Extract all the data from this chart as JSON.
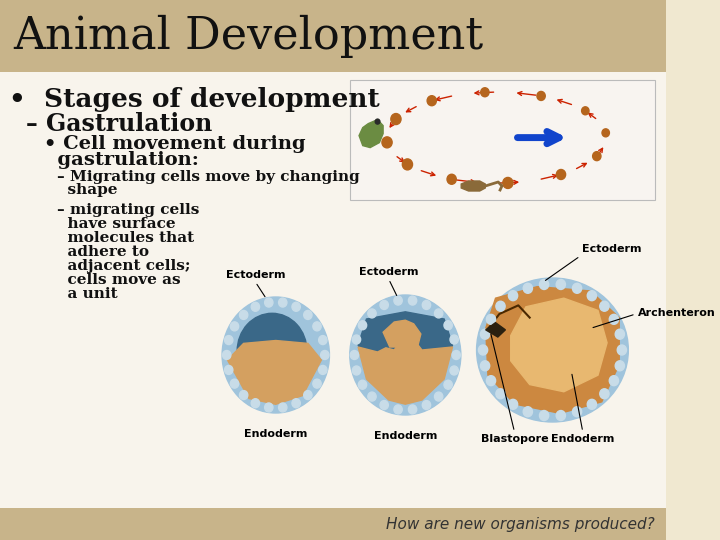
{
  "title": "Animal Development",
  "title_bg_color": "#c8b48a",
  "slide_bg_color": "#f0e8d0",
  "bottom_bar_color": "#c8b48a",
  "title_font_size": 32,
  "title_color": "#111111",
  "bullet1": "Stages of development",
  "bullet1_size": 19,
  "bullet2": "– Gastrulation",
  "bullet2_size": 17,
  "bullet3_line1": "• Cell movement during",
  "bullet3_line2": "  gastrulation:",
  "bullet3_size": 14,
  "sub1_line1": "– Migrating cells move by changing",
  "sub1_line2": "  shape",
  "sub1_size": 11,
  "sub2": "– migrating cells\n  have surface\n  molecules that\n  adhere to\n  adjacent cells;\n  cells move as\n  a unit",
  "sub2_size": 11,
  "footer": "How are new organisms produced?",
  "footer_size": 11,
  "footer_color": "#333333",
  "text_color": "#111111",
  "body_bg": "#f8f4ec",
  "gastrula_outer_color": "#a8ccdf",
  "gastrula_cell_color": "#c8dfe8",
  "gastrula_blue_fill": "#5588aa",
  "gastrula_yolk_color": "#d4956a",
  "gastrula_orange_fill": "#e8a850",
  "archenteron_color": "#c8844a"
}
